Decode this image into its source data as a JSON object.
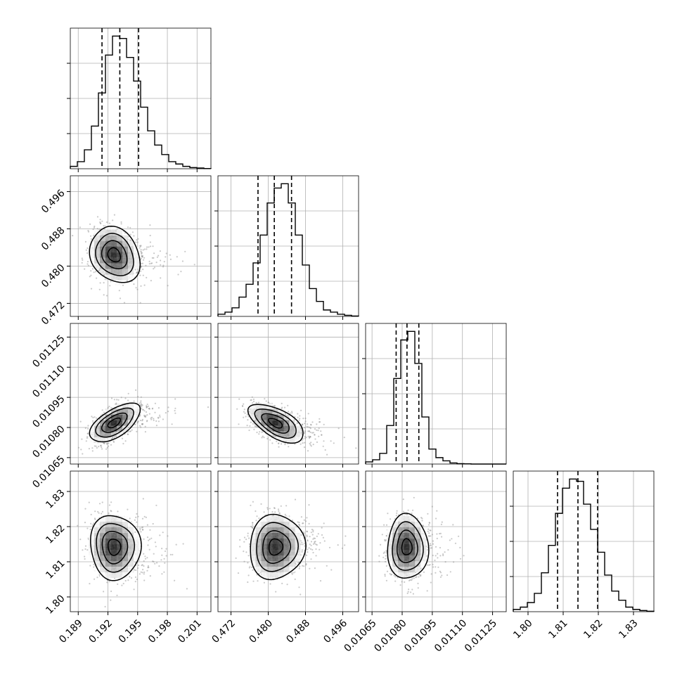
{
  "chart_data": {
    "type": "corner",
    "parameters": [
      {
        "ticks": [
          "0.189",
          "0.192",
          "0.195",
          "0.198",
          "0.201"
        ],
        "range": [
          0.1882,
          0.2024
        ],
        "hist": [
          1,
          3,
          8,
          18,
          32,
          48,
          56,
          55,
          47,
          37,
          26,
          16,
          10,
          6,
          3,
          2,
          1,
          0.5,
          0.3,
          0.1
        ],
        "quantiles": [
          0.1914,
          0.1932,
          0.1951
        ]
      },
      {
        "ticks": [
          "0.472",
          "0.480",
          "0.488",
          "0.496"
        ],
        "range": [
          0.4692,
          0.4994
        ],
        "hist": [
          1,
          2,
          4,
          9,
          15,
          25,
          38,
          53,
          60,
          62,
          53,
          38,
          24,
          13,
          7,
          3,
          2,
          1,
          0.5,
          0.2
        ],
        "quantiles": [
          0.4778,
          0.4813,
          0.485
        ]
      },
      {
        "ticks": [
          "0.01065",
          "0.01080",
          "0.01095",
          "0.01110",
          "0.01125"
        ],
        "range": [
          0.010618,
          0.011318
        ],
        "hist": [
          1,
          2,
          5,
          18,
          40,
          58,
          62,
          47,
          22,
          7,
          3,
          1.5,
          0.5,
          0.2,
          0.1,
          0,
          0,
          0,
          0,
          0
        ],
        "quantiles": [
          0.01077,
          0.010824,
          0.010883
        ]
      },
      {
        "ticks": [
          "1.80",
          "1.81",
          "1.82",
          "1.83"
        ],
        "range": [
          1.7958,
          1.8358
        ],
        "hist": [
          1,
          2,
          4,
          8,
          17,
          29,
          43,
          54,
          58,
          57,
          47,
          36,
          26,
          16,
          9,
          5,
          2,
          1,
          0.5,
          0.2
        ],
        "quantiles": [
          1.8084,
          1.8142,
          1.8198
        ]
      }
    ],
    "pairs": [
      {
        "row": 1,
        "col": 0,
        "mean": [
          0.1926,
          0.4824
        ],
        "sd": [
          0.0012,
          0.003
        ],
        "rho": -0.2
      },
      {
        "row": 2,
        "col": 0,
        "mean": [
          0.1926,
          0.010822
        ],
        "sd": [
          0.0012,
          4.8e-05
        ],
        "rho": 0.6
      },
      {
        "row": 2,
        "col": 1,
        "mean": [
          0.4815,
          0.010822
        ],
        "sd": [
          0.0028,
          4.8e-05
        ],
        "rho": -0.6
      },
      {
        "row": 3,
        "col": 0,
        "mean": [
          0.1926,
          1.8142
        ],
        "sd": [
          0.0012,
          0.0046
        ],
        "rho": -0.05
      },
      {
        "row": 3,
        "col": 1,
        "mean": [
          0.4815,
          1.8142
        ],
        "sd": [
          0.0028,
          0.0046
        ],
        "rho": 0.05
      },
      {
        "row": 3,
        "col": 2,
        "mean": [
          0.010822,
          1.8142
        ],
        "sd": [
          4.8e-05,
          0.0046
        ],
        "rho": 0.0
      }
    ],
    "diag_ticks": [
      [
        "",
        "",
        "",
        ""
      ],
      [
        "",
        "",
        "",
        ""
      ],
      [
        "",
        "",
        "",
        ""
      ],
      [
        "",
        "",
        ""
      ]
    ],
    "grid": true,
    "xlabel": "",
    "ylabel": ""
  }
}
